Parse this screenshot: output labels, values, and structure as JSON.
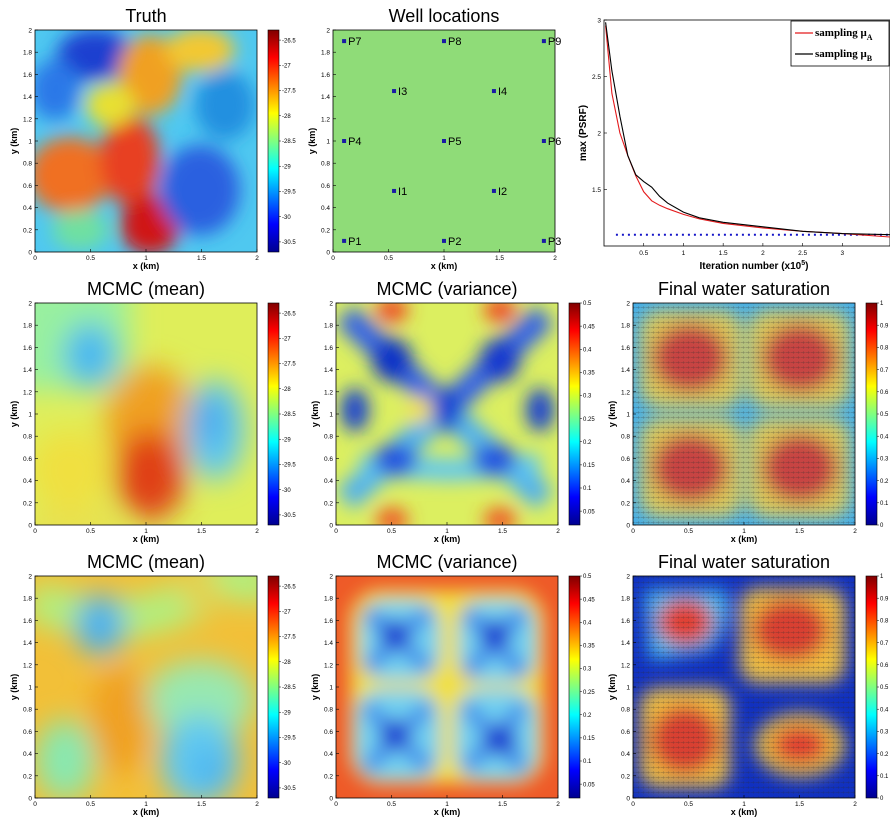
{
  "common": {
    "xlabel": "x (km)",
    "ylabel": "y (km)",
    "xticks": [
      "0",
      "0.5",
      "1",
      "1.5",
      "2"
    ],
    "yticks": [
      "0",
      "0.2",
      "0.4",
      "0.6",
      "0.8",
      "1",
      "1.2",
      "1.4",
      "1.6",
      "1.8",
      "2"
    ],
    "perm_cbar_ticks": [
      "-26.5",
      "-27",
      "-27.5",
      "-28",
      "-28.5",
      "-29",
      "-29.5",
      "-30",
      "-30.5"
    ],
    "var_cbar_ticks": [
      "0.5",
      "0.45",
      "0.4",
      "0.35",
      "0.3",
      "0.25",
      "0.2",
      "0.15",
      "0.1",
      "0.05"
    ],
    "sat_cbar_ticks": [
      "1",
      "0.9",
      "0.8",
      "0.7",
      "0.6",
      "0.5",
      "0.4",
      "0.3",
      "0.2",
      "0.1",
      "0"
    ],
    "colors": {
      "field_background": "#8fdc78",
      "well_marker": "#1a1aa6",
      "red_series": "#e41a1c",
      "black_series": "#000000",
      "threshold_line": "#1515c8"
    }
  },
  "chart_data": [
    {
      "type": "heatmap",
      "title": "Truth",
      "colormap": "jet",
      "xlabel": "x (km)",
      "ylabel": "y (km)",
      "xlim": [
        0,
        2
      ],
      "ylim": [
        0,
        2
      ],
      "clim": [
        -30.7,
        -26.3
      ]
    },
    {
      "type": "scatter",
      "title": "Well locations",
      "xlabel": "x (km)",
      "ylabel": "y (km)",
      "xlim": [
        0,
        2
      ],
      "ylim": [
        0,
        2
      ],
      "points": [
        {
          "label": "P1",
          "x": 0.1,
          "y": 0.1
        },
        {
          "label": "P2",
          "x": 1.0,
          "y": 0.1
        },
        {
          "label": "P3",
          "x": 1.9,
          "y": 0.1
        },
        {
          "label": "I1",
          "x": 0.55,
          "y": 0.55
        },
        {
          "label": "I2",
          "x": 1.45,
          "y": 0.55
        },
        {
          "label": "P4",
          "x": 0.1,
          "y": 1.0
        },
        {
          "label": "P5",
          "x": 1.0,
          "y": 1.0
        },
        {
          "label": "P6",
          "x": 1.9,
          "y": 1.0
        },
        {
          "label": "I3",
          "x": 0.55,
          "y": 1.45
        },
        {
          "label": "I4",
          "x": 1.45,
          "y": 1.45
        },
        {
          "label": "P7",
          "x": 0.1,
          "y": 1.9
        },
        {
          "label": "P8",
          "x": 1.0,
          "y": 1.9
        },
        {
          "label": "P9",
          "x": 1.9,
          "y": 1.9
        }
      ]
    },
    {
      "type": "line",
      "xlabel": "Iteration number (x10",
      "xlabel_sup": "5",
      "xlabel_end": ")",
      "ylabel": "max (PSRF)",
      "xlim": [
        0,
        3.6
      ],
      "ylim": [
        1.0,
        3.0
      ],
      "xticks": [
        "0.5",
        "1",
        "1.5",
        "2",
        "2.5",
        "3"
      ],
      "yticks": [
        "1.5",
        "2",
        "2.5",
        "3"
      ],
      "series": [
        {
          "name": "sampling μ",
          "subscript": "A",
          "color": "#e41a1c",
          "x": [
            0.02,
            0.1,
            0.2,
            0.3,
            0.4,
            0.5,
            0.6,
            0.7,
            0.8,
            1.0,
            1.2,
            1.5,
            2.0,
            2.5,
            3.0,
            3.6
          ],
          "y": [
            2.95,
            2.35,
            2.0,
            1.8,
            1.62,
            1.48,
            1.4,
            1.36,
            1.33,
            1.28,
            1.24,
            1.2,
            1.16,
            1.13,
            1.11,
            1.08
          ]
        },
        {
          "name": "sampling μ",
          "subscript": "B",
          "color": "#000000",
          "x": [
            0.02,
            0.1,
            0.2,
            0.3,
            0.4,
            0.5,
            0.6,
            0.7,
            0.8,
            1.0,
            1.2,
            1.5,
            2.0,
            2.5,
            3.0,
            3.6
          ],
          "y": [
            2.98,
            2.55,
            2.15,
            1.8,
            1.63,
            1.57,
            1.52,
            1.44,
            1.38,
            1.3,
            1.25,
            1.21,
            1.17,
            1.13,
            1.11,
            1.1
          ]
        }
      ],
      "threshold": 1.1,
      "legend": "top-right"
    },
    {
      "type": "heatmap",
      "title": "MCMC (mean)",
      "colormap": "jet",
      "xlabel": "x (km)",
      "ylabel": "y (km)",
      "xlim": [
        0,
        2
      ],
      "ylim": [
        0,
        2
      ],
      "clim": [
        -30.7,
        -26.3
      ]
    },
    {
      "type": "heatmap",
      "title": "MCMC (variance)",
      "colormap": "jet",
      "xlabel": "x (km)",
      "ylabel": "y (km)",
      "xlim": [
        0,
        2
      ],
      "ylim": [
        0,
        2
      ],
      "clim": [
        0.02,
        0.5
      ]
    },
    {
      "type": "heatmap",
      "title": "Final water saturation",
      "colormap": "jet",
      "xlabel": "x (km)",
      "ylabel": "y (km)",
      "xlim": [
        0,
        2
      ],
      "ylim": [
        0,
        2
      ],
      "clim": [
        0,
        1
      ]
    },
    {
      "type": "heatmap",
      "title": "MCMC (mean)",
      "colormap": "jet",
      "xlabel": "x (km)",
      "ylabel": "y (km)",
      "xlim": [
        0,
        2
      ],
      "ylim": [
        0,
        2
      ],
      "clim": [
        -30.7,
        -26.3
      ]
    },
    {
      "type": "heatmap",
      "title": "MCMC (variance)",
      "colormap": "jet",
      "xlabel": "x (km)",
      "ylabel": "y (km)",
      "xlim": [
        0,
        2
      ],
      "ylim": [
        0,
        2
      ],
      "clim": [
        0.02,
        0.5
      ]
    },
    {
      "type": "heatmap",
      "title": "Final water saturation",
      "colormap": "jet",
      "xlabel": "x (km)",
      "ylabel": "y (km)",
      "xlim": [
        0,
        2
      ],
      "ylim": [
        0,
        2
      ],
      "clim": [
        0,
        1
      ]
    }
  ]
}
